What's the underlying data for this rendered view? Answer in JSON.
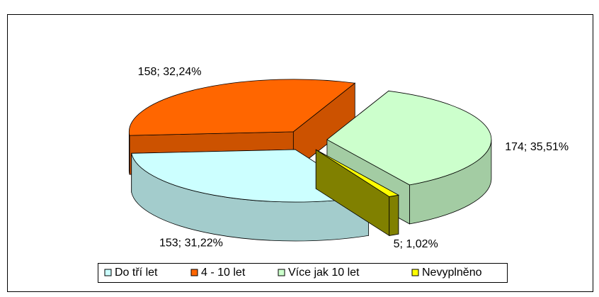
{
  "chart_data": {
    "type": "pie",
    "categories": [
      "Do tří let",
      "4 - 10 let",
      "Více jak 10 let",
      "Nevyplněno"
    ],
    "values": [
      153,
      158,
      174,
      5
    ],
    "value_labels": [
      "153; 31,22%",
      "158; 32,24%",
      "174; 35,51%",
      "5; 1,02%"
    ],
    "colors": [
      "#ccffff",
      "#ff6600",
      "#ccffcc",
      "#ffff00"
    ],
    "legend": "bottom"
  }
}
